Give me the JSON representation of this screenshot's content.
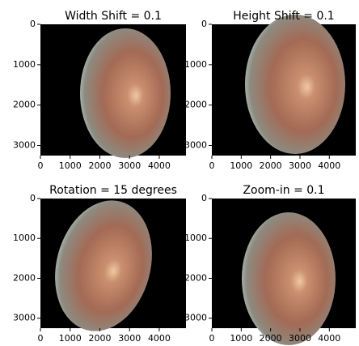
{
  "chart_data": [
    {
      "type": "image",
      "title": "Width Shift = 0.1",
      "xlim": [
        0,
        4900
      ],
      "ylim": [
        3250,
        0
      ],
      "xticks": [
        0,
        1000,
        2000,
        3000,
        4000
      ],
      "yticks": [
        0,
        1000,
        2000,
        3000
      ]
    },
    {
      "type": "image",
      "title": "Height Shift = 0.1",
      "xlim": [
        0,
        4900
      ],
      "ylim": [
        3250,
        0
      ],
      "xticks": [
        0,
        1000,
        2000,
        3000,
        4000
      ],
      "yticks": [
        0,
        1000,
        2000,
        3000
      ]
    },
    {
      "type": "image",
      "title": "Rotation = 15 degrees",
      "xlim": [
        0,
        4900
      ],
      "ylim": [
        3250,
        0
      ],
      "xticks": [
        0,
        1000,
        2000,
        3000,
        4000
      ],
      "yticks": [
        0,
        1000,
        2000,
        3000
      ]
    },
    {
      "type": "image",
      "title": "Zoom-in = 0.1",
      "xlim": [
        0,
        4900
      ],
      "ylim": [
        3250,
        0
      ],
      "xticks": [
        0,
        1000,
        2000,
        3000,
        4000
      ],
      "yticks": [
        0,
        1000,
        2000,
        3000
      ]
    }
  ]
}
